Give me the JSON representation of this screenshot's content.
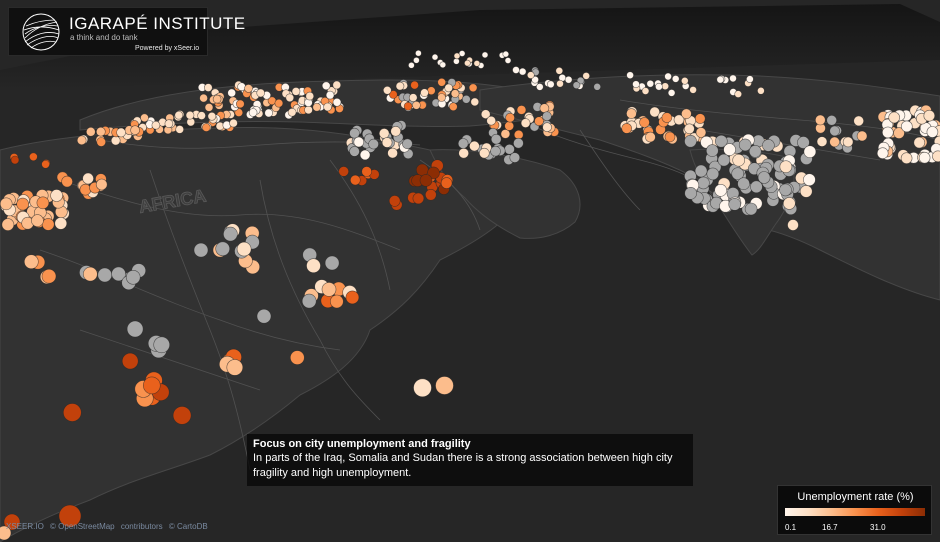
{
  "header": {
    "title": "IGARAPÉ INSTITUTE",
    "tagline": "a think and do tank",
    "powered_by": "Powered by xSeer.io"
  },
  "map": {
    "region_label": "AFRICA",
    "background_color": "#262626",
    "land_color": "#333333",
    "boundary_color": "#4a4a4a",
    "missing_data_color": "#a8a8a8"
  },
  "story": {
    "title": "Focus on city unemployment and fragility",
    "body": "In parts of the Iraq, Somalia and Sudan there is a strong association between high city fragility and high unemployment."
  },
  "legend": {
    "title": "Unemployment rate (%)",
    "ticks": [
      "0.1",
      "16.7",
      "31.0"
    ],
    "tick_values": [
      0.1,
      16.7,
      31.0
    ],
    "range": [
      0.1,
      40
    ],
    "colors": [
      "#fff5ec",
      "#fde0c5",
      "#fcbd8c",
      "#f9924e",
      "#e9611c",
      "#c2410b",
      "#8c2d04"
    ]
  },
  "attribution": {
    "parts": [
      "XSEER.IO",
      "© OpenStreetMap",
      "contributors",
      "© CartoDB"
    ]
  }
}
